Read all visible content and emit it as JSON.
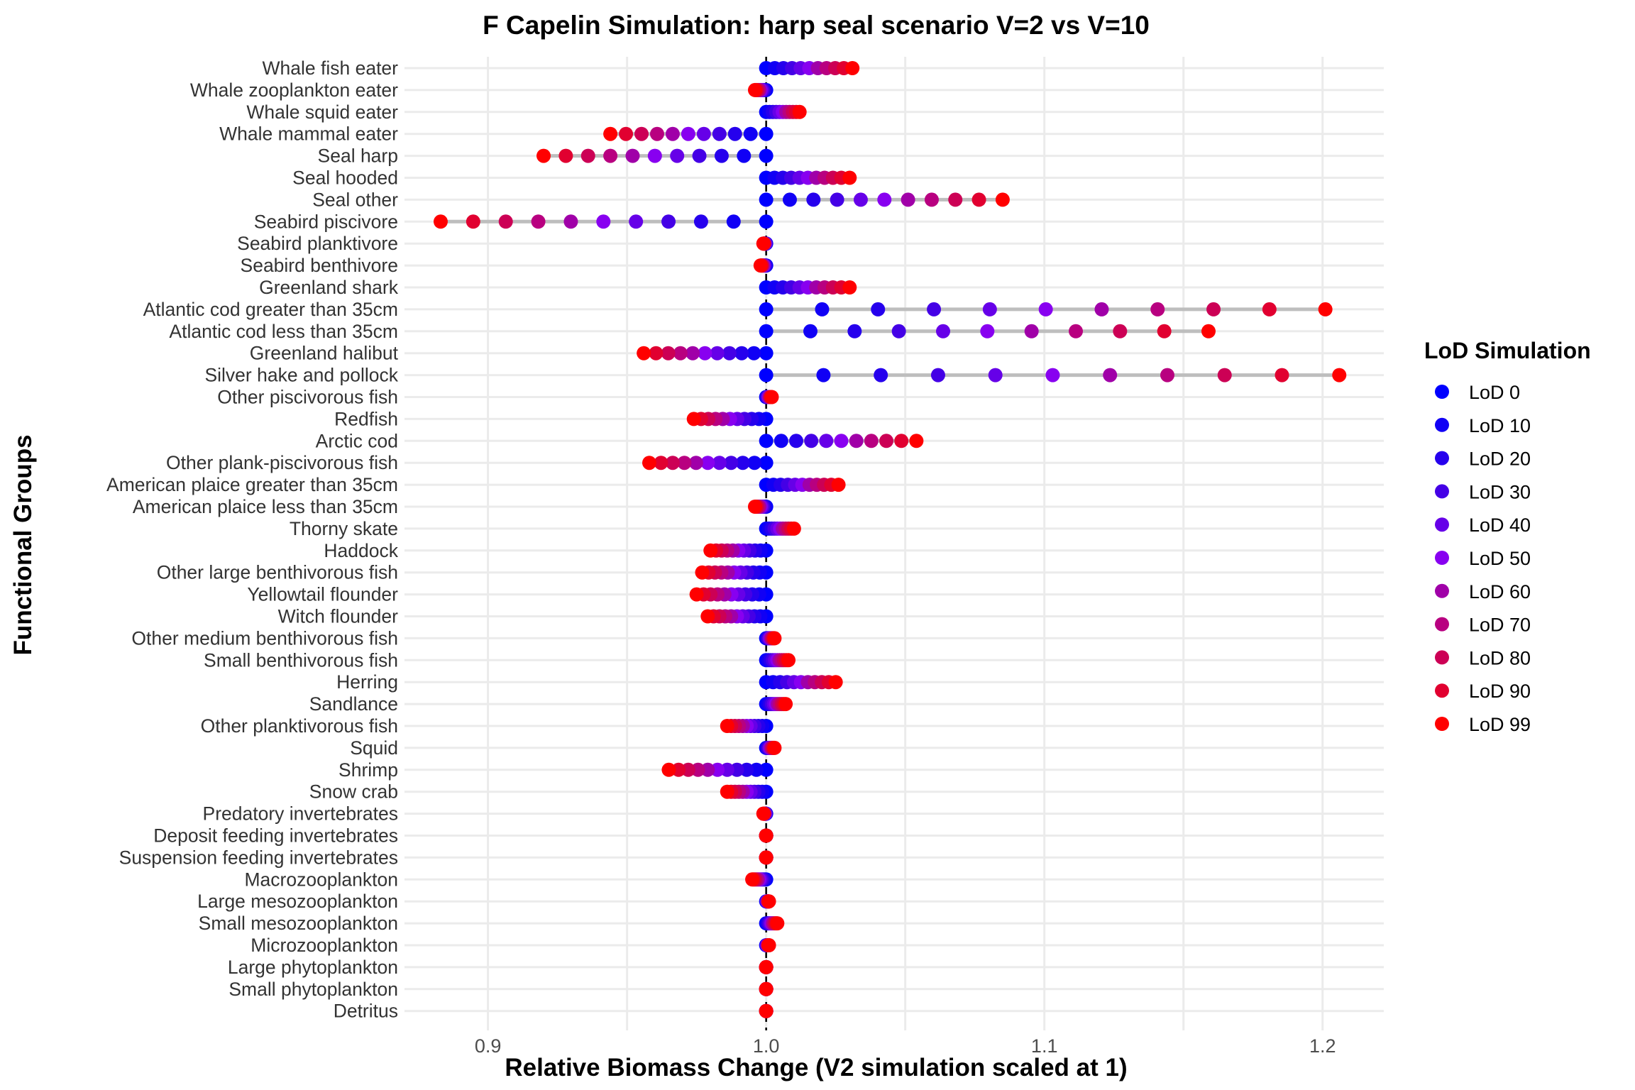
{
  "chart_data": {
    "type": "scatter",
    "title": "F Capelin Simulation: harp seal scenario V=2 vs V=10",
    "xlabel": "Relative Biomass Change (V2 simulation scaled at 1)",
    "ylabel": "Functional Groups",
    "xlim": [
      0.87,
      1.222
    ],
    "x_ticks": [
      "0.9",
      "1.0",
      "1.1",
      "1.2"
    ],
    "x_tick_values": [
      0.9,
      1.0,
      1.1,
      1.2
    ],
    "reference_line": 1.0,
    "grid": true,
    "legend": {
      "title": "LoD Simulation",
      "placement": "right",
      "entries": [
        "LoD 0",
        "LoD 10",
        "LoD 20",
        "LoD 30",
        "LoD 40",
        "LoD 50",
        "LoD 60",
        "LoD 70",
        "LoD 80",
        "LoD 90",
        "LoD 99"
      ],
      "colors": [
        "#0000ff",
        "#1100f5",
        "#2600ed",
        "#4400e6",
        "#6600e8",
        "#8800f0",
        "#a000a8",
        "#b80080",
        "#cc0055",
        "#e10030",
        "#ff0000"
      ]
    },
    "categories": [
      "Whale fish eater",
      "Whale zooplankton eater",
      "Whale squid eater",
      "Whale mammal eater",
      "Seal harp",
      "Seal hooded",
      "Seal other",
      "Seabird piscivore",
      "Seabird planktivore",
      "Seabird benthivore",
      "Greenland shark",
      "Atlantic cod greater than 35cm",
      "Atlantic cod less than 35cm",
      "Greenland halibut",
      "Silver hake and pollock",
      "Other piscivorous fish",
      "Redfish",
      "Arctic cod",
      "Other plank-piscivorous fish",
      "American plaice greater than 35cm",
      "American plaice less than 35cm",
      "Thorny skate",
      "Haddock",
      "Other large benthivorous fish",
      "Yellowtail flounder",
      "Witch flounder",
      "Other medium benthivorous fish",
      "Small benthivorous fish",
      "Herring",
      "Sandlance",
      "Other planktivorous fish",
      "Squid",
      "Shrimp",
      "Snow crab",
      "Predatory invertebrates",
      "Deposit feeding invertebrates",
      "Suspension feeding invertebrates",
      "Macrozooplankton",
      "Large mesozooplankton",
      "Small mesozooplankton",
      "Microzooplankton",
      "Large phytoplankton",
      "Small phytoplankton",
      "Detritus"
    ],
    "lod_end_values": [
      1.031,
      0.996,
      1.012,
      0.944,
      0.92,
      1.03,
      1.085,
      0.883,
      0.999,
      0.998,
      1.03,
      1.201,
      1.159,
      0.956,
      1.206,
      1.002,
      0.974,
      1.054,
      0.958,
      1.026,
      0.996,
      1.01,
      0.98,
      0.977,
      0.975,
      0.979,
      1.003,
      1.008,
      1.025,
      1.007,
      0.986,
      1.003,
      0.965,
      0.986,
      0.999,
      1.0,
      1.0,
      0.995,
      1.001,
      1.004,
      1.001,
      1.0,
      1.0,
      1.0
    ]
  }
}
